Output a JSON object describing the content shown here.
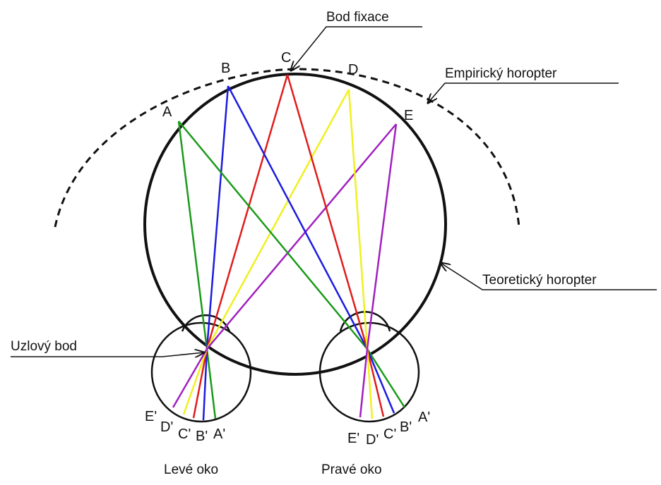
{
  "labels": {
    "fixation_point": "Bod fixace",
    "empirical_horopter": "Empirický horopter",
    "theoretical_horopter": "Teoretický horopter",
    "nodal_point": "Uzlový bod",
    "left_eye": "Levé oko",
    "right_eye": "Pravé oko"
  },
  "points": [
    "A",
    "B",
    "C",
    "D",
    "E"
  ],
  "left_images": [
    "E'",
    "D'",
    "C'",
    "B'",
    "A'"
  ],
  "right_images": [
    "E'",
    "D'",
    "C'",
    "B'",
    "A'"
  ]
}
